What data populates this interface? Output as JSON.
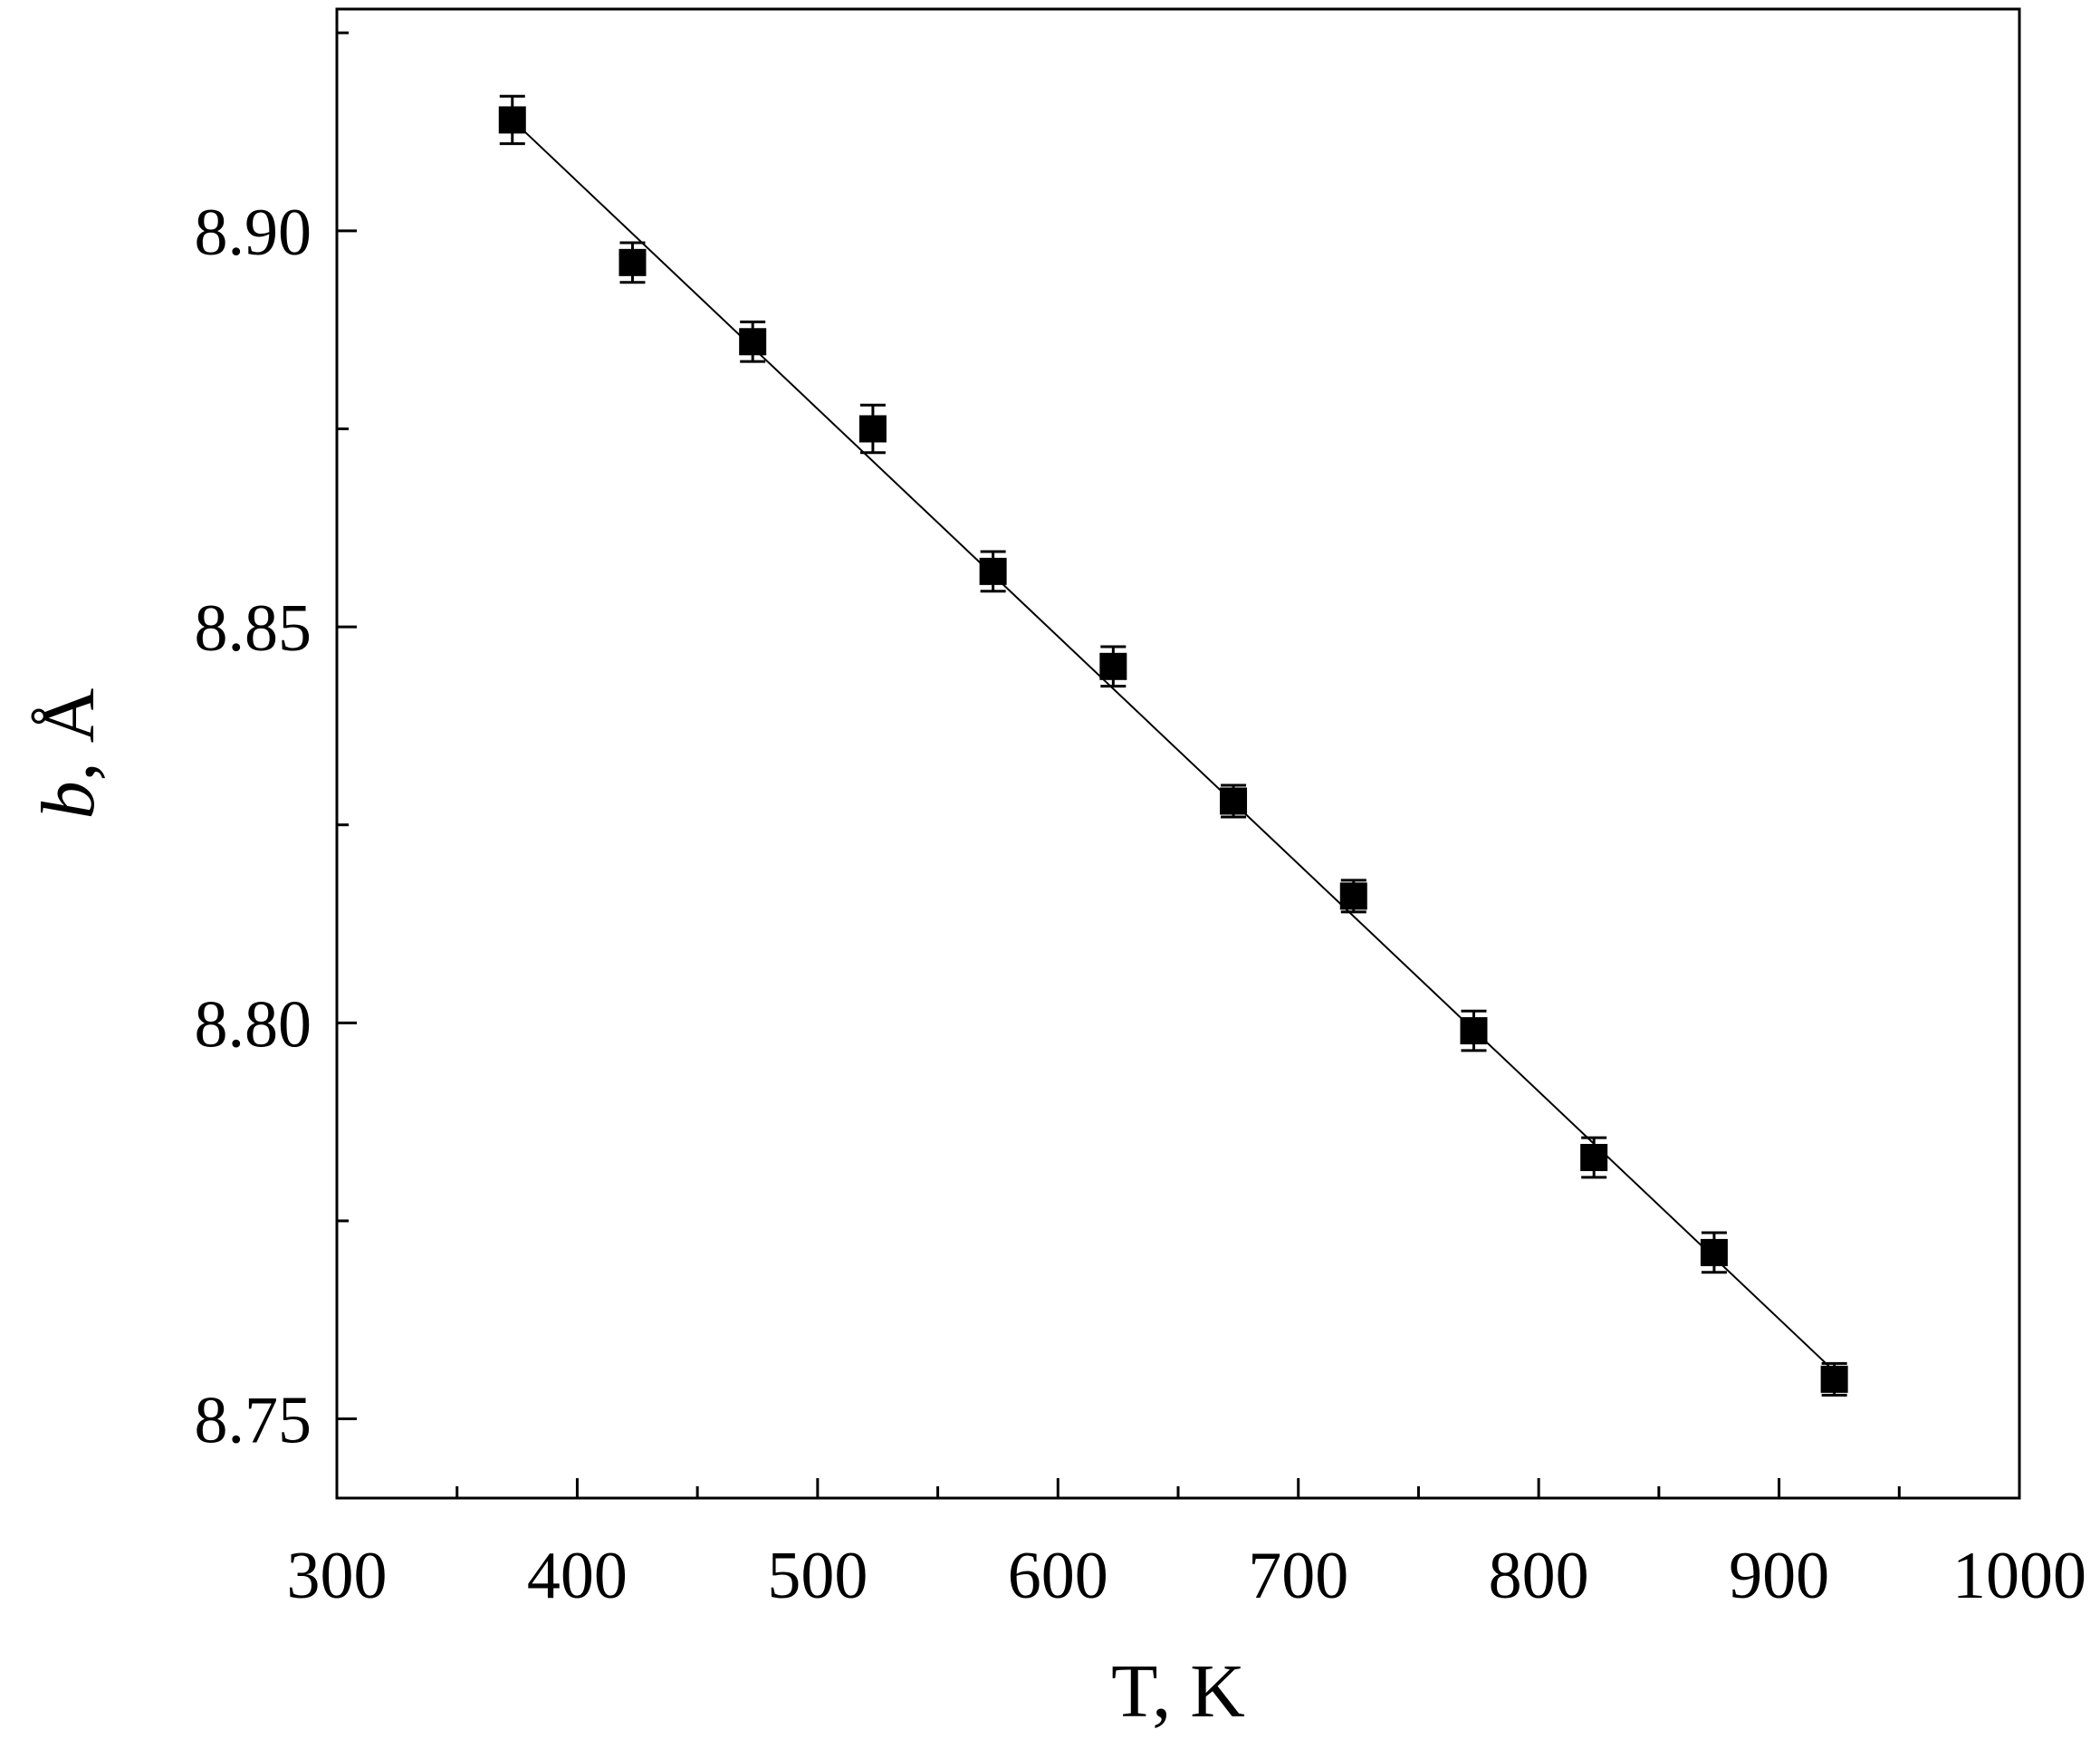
{
  "chart_data": {
    "type": "scatter",
    "xlabel": "T, K",
    "ylabel_var": "b",
    "ylabel_unit": ", Å",
    "xlim": [
      300,
      1000
    ],
    "ylim": [
      8.74,
      8.928
    ],
    "x_major_ticks": [
      300,
      400,
      500,
      600,
      700,
      800,
      900,
      1000
    ],
    "x_minor_ticks": [
      350,
      450,
      550,
      650,
      750,
      850,
      950
    ],
    "x_tick_labels": [
      "300",
      "400",
      "500",
      "600",
      "700",
      "800",
      "900",
      "1000"
    ],
    "y_major_ticks": [
      8.75,
      8.8,
      8.85,
      8.9
    ],
    "y_minor_ticks": [
      8.775,
      8.825,
      8.875,
      8.925
    ],
    "y_tick_labels": [
      "8.75",
      "8.80",
      "8.85",
      "8.90"
    ],
    "grid": false,
    "legend": "none",
    "series": [
      {
        "marker": "square",
        "color": "#000000",
        "x": [
          373,
          423,
          473,
          523,
          573,
          623,
          673,
          723,
          773,
          823,
          873,
          923
        ],
        "y": [
          8.914,
          8.896,
          8.886,
          8.875,
          8.857,
          8.845,
          8.828,
          8.816,
          8.799,
          8.783,
          8.771,
          8.755
        ],
        "yerr": [
          0.003,
          0.0025,
          0.0025,
          0.003,
          0.0025,
          0.0025,
          0.002,
          0.002,
          0.0025,
          0.0025,
          0.0025,
          0.002
        ]
      }
    ],
    "fit_line": {
      "x": [
        373,
        923
      ],
      "y": [
        8.914,
        8.756
      ]
    }
  }
}
